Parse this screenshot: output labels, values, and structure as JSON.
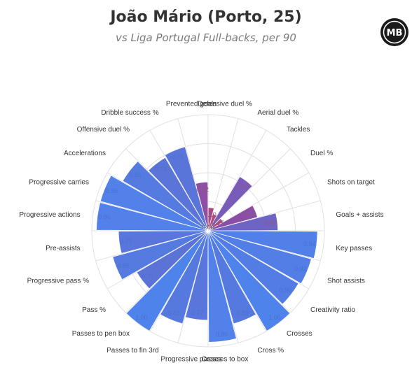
{
  "title": "João Mário (Porto, 25)",
  "subtitle": "vs Liga Portugal Full-backs, per 90",
  "logo_text": "MB",
  "center_label": "0.00",
  "colors": {
    "red": "#c44a60",
    "purple": "#8a4ea8",
    "blue": "#5b72d6",
    "blue_light": "#4f83ec",
    "grid": "#e0e0e0"
  },
  "chart_data": {
    "type": "polar-bar",
    "scale": [
      0,
      1
    ],
    "title": "João Mário (Porto, 25)",
    "subtitle": "vs Liga Portugal Full-backs, per 90",
    "categories": [
      {
        "label": "Defensive duel %",
        "value": 0.2,
        "value_label": "0.20",
        "group": "defending"
      },
      {
        "label": "Aerial duel %",
        "value": 0.15,
        "value_label": "",
        "group": "defending"
      },
      {
        "label": "Tackles",
        "value": 0.54,
        "value_label": "0.54",
        "group": "defending"
      },
      {
        "label": "Duel %",
        "value": 0.15,
        "value_label": "0.15",
        "group": "defending"
      },
      {
        "label": "Shots on target",
        "value": 0.44,
        "value_label": "0.44",
        "group": "attacking"
      },
      {
        "label": "Goals + assists",
        "value": 0.6,
        "value_label": "0.60",
        "group": "attacking"
      },
      {
        "label": "Key passes",
        "value": 0.94,
        "value_label": "0.94",
        "group": "creation"
      },
      {
        "label": "Shot assists",
        "value": 0.92,
        "value_label": "0.92",
        "group": "creation"
      },
      {
        "label": "Creativity ratio",
        "value": 0.9,
        "value_label": "0.90",
        "group": "creation"
      },
      {
        "label": "Crosses",
        "value": 1.0,
        "value_label": "1.00",
        "group": "creation"
      },
      {
        "label": "Cross %",
        "value": 0.83,
        "value_label": "0.83",
        "group": "creation"
      },
      {
        "label": "Crosses to box",
        "value": 0.96,
        "value_label": "0.96",
        "group": "creation"
      },
      {
        "label": "Progressive passes",
        "value": 0.77,
        "value_label": "0.77",
        "group": "creation"
      },
      {
        "label": "Passes to fin 3rd",
        "value": 0.83,
        "value_label": "0.83",
        "group": "creation"
      },
      {
        "label": "Passes to pen box",
        "value": 1.0,
        "value_label": "1.00",
        "group": "creation"
      },
      {
        "label": "Pass %",
        "value": 0.71,
        "value_label": "0.71",
        "group": "creation"
      },
      {
        "label": "Progressive pass %",
        "value": 0.85,
        "value_label": "0.85",
        "group": "creation"
      },
      {
        "label": "Pre-assists",
        "value": 0.77,
        "value_label": "0.77",
        "group": "creation"
      },
      {
        "label": "Progressive actions",
        "value": 0.96,
        "value_label": "0.96",
        "group": "creation"
      },
      {
        "label": "Progressive carries",
        "value": 0.96,
        "value_label": "0.96",
        "group": "creation"
      },
      {
        "label": "Accelerations",
        "value": 0.85,
        "value_label": "0.85",
        "group": "creation"
      },
      {
        "label": "Offensive duel %",
        "value": 0.73,
        "value_label": "0.73",
        "group": "creation"
      },
      {
        "label": "Dribble success %",
        "value": 0.75,
        "value_label": "0.75",
        "group": "creation"
      },
      {
        "label": "Prevented goals",
        "value": 0.42,
        "value_label": "0.42",
        "group": "defending"
      }
    ]
  }
}
